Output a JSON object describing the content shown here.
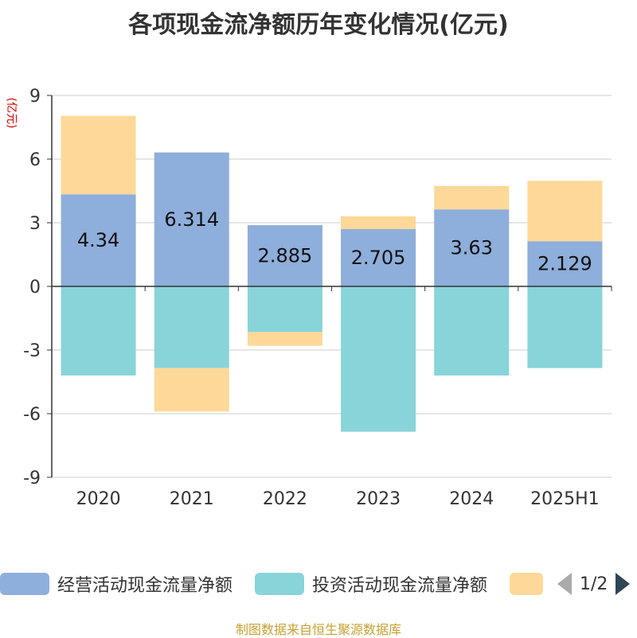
{
  "title": "各项现金流净额历年变化情况(亿元)",
  "source": "制图数据来自恒生聚源数据库",
  "legend": {
    "items": [
      {
        "label": "经营活动现金流量净额",
        "color": "#8eaedb"
      },
      {
        "label": "投资活动现金流量净额",
        "color": "#88d4d8"
      },
      {
        "label": "",
        "color": "#fdd898"
      }
    ],
    "pager": "1/2"
  },
  "chart_data": {
    "type": "bar",
    "stacked": true,
    "ylabel": "(亿元)",
    "ylim": [
      -9,
      9
    ],
    "yticks": [
      -9,
      -6,
      -3,
      0,
      3,
      6,
      9
    ],
    "grid": true,
    "legend_position": "bottom",
    "categories": [
      "2020",
      "2021",
      "2022",
      "2023",
      "2024",
      "2025H1"
    ],
    "series": [
      {
        "name": "经营活动现金流量净额",
        "color": "#8eaedb",
        "values": [
          4.34,
          6.314,
          2.885,
          2.705,
          3.63,
          2.129
        ],
        "labels": [
          "4.34",
          "6.314",
          "2.885",
          "2.705",
          "3.63",
          "2.129"
        ]
      },
      {
        "name": "投资活动现金流量净额",
        "color": "#88d4d8",
        "values": [
          -4.2,
          -3.85,
          -2.15,
          -6.85,
          -4.2,
          -3.85
        ]
      },
      {
        "color": "#fdd898",
        "values": [
          3.7,
          -2.05,
          -0.65,
          0.6,
          1.1,
          2.85
        ]
      }
    ]
  }
}
